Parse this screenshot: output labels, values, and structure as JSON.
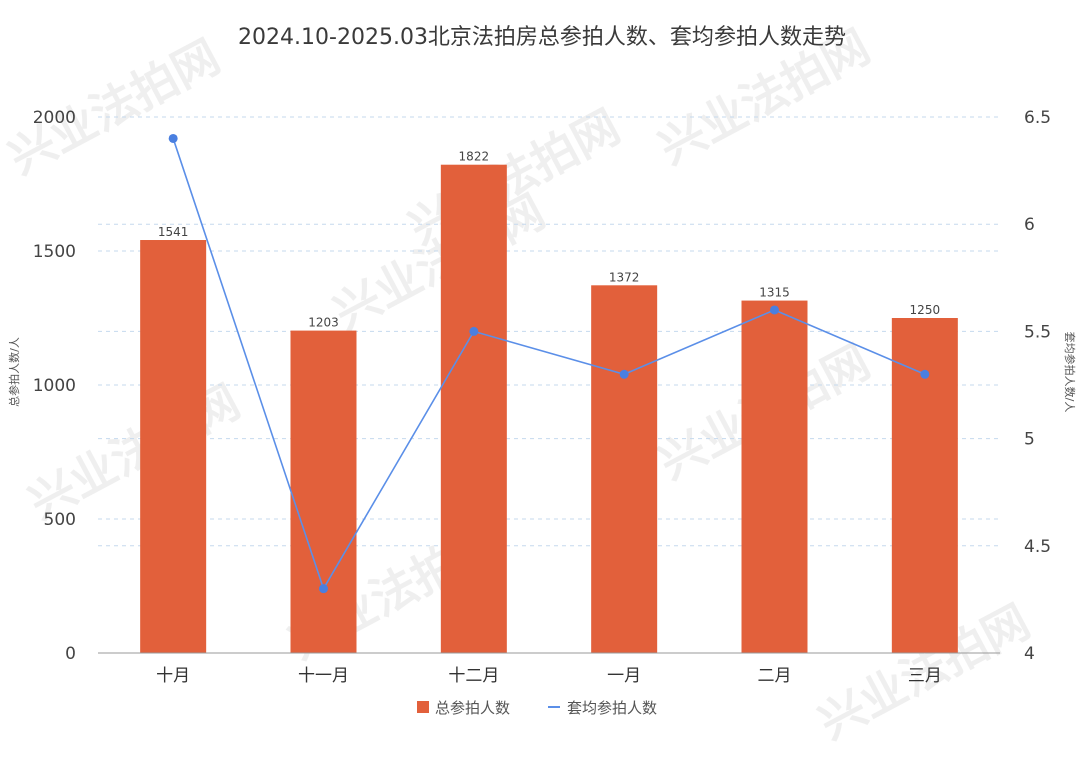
{
  "chart_data": {
    "type": "bar",
    "title": "2024.10-2025.03北京法拍房总参拍人数、套均参拍人数走势",
    "categories": [
      "十月",
      "十一月",
      "十二月",
      "一月",
      "二月",
      "三月"
    ],
    "series": [
      {
        "name": "总参拍人数",
        "type": "bar",
        "axis": "left",
        "color": "#e2603b",
        "values": [
          1541,
          1203,
          1822,
          1372,
          1315,
          1250
        ],
        "labels": [
          "1541",
          "1203",
          "1822",
          "1372",
          "1315",
          "1250"
        ]
      },
      {
        "name": "套均参拍人数",
        "type": "line",
        "axis": "right",
        "color": "#5b8fe8",
        "values": [
          6.4,
          4.3,
          5.5,
          5.3,
          5.6,
          5.3
        ]
      }
    ],
    "ylabel": "总参拍人数/人",
    "y2label": "套均参拍人数/人",
    "ylim": [
      0,
      2000
    ],
    "y2lim": [
      4,
      6.5
    ],
    "yticks": [
      "0",
      "500",
      "1000",
      "1500",
      "2000"
    ],
    "y2ticks": [
      "4",
      "4.5",
      "5",
      "5.5",
      "6",
      "6.5"
    ],
    "grid": true,
    "legend": "bottom",
    "watermark": "兴业法拍网"
  }
}
